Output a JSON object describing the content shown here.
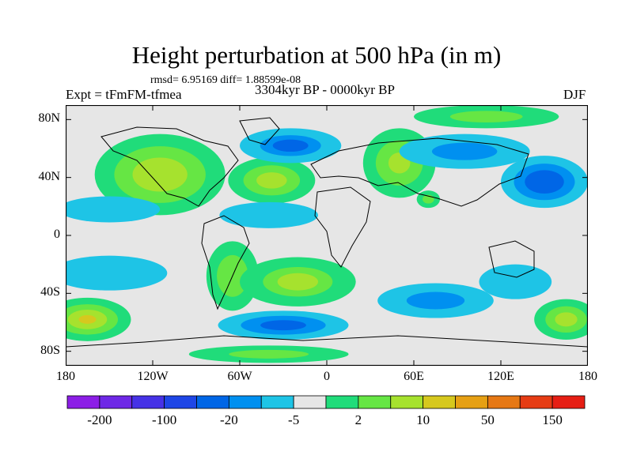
{
  "title": "Height perturbation at 500 hPa (in m)",
  "stats": "rmsd= 6.95169 diff= 1.88599e-08",
  "experiment": "Expt = tFmFM-tfmea",
  "period": "3304kyr BP - 0000kyr BP",
  "season": "DJF",
  "map": {
    "projection": "cylindrical-equidistant",
    "lon_range": [
      -180,
      180
    ],
    "lat_range": [
      -90,
      90
    ],
    "lat_ticks": [
      {
        "value": 80,
        "label": "80N"
      },
      {
        "value": 40,
        "label": "40N"
      },
      {
        "value": 0,
        "label": "0"
      },
      {
        "value": -40,
        "label": "40S"
      },
      {
        "value": -80,
        "label": "80S"
      }
    ],
    "lon_ticks": [
      {
        "value": -180,
        "label": "180"
      },
      {
        "value": -120,
        "label": "120W"
      },
      {
        "value": -60,
        "label": "60W"
      },
      {
        "value": 0,
        "label": "0"
      },
      {
        "value": 60,
        "label": "60E"
      },
      {
        "value": 120,
        "label": "120E"
      },
      {
        "value": 180,
        "label": "180"
      }
    ],
    "background_color": "#e6e6e6",
    "contour_regions": [
      {
        "name": "north-america-positive",
        "lon": -115,
        "lat": 42,
        "rlon": 45,
        "rlat": 28,
        "color": "#20dc7a",
        "levels": [
          {
            "k": 0.7,
            "color": "#66e644"
          },
          {
            "k": 0.42,
            "color": "#a6e22e"
          }
        ]
      },
      {
        "name": "north-atlantic-positive",
        "lon": -38,
        "lat": 38,
        "rlon": 30,
        "rlat": 16,
        "color": "#20dc7a",
        "levels": [
          {
            "k": 0.65,
            "color": "#66e644"
          },
          {
            "k": 0.35,
            "color": "#a6e22e"
          }
        ]
      },
      {
        "name": "europe-positive",
        "lon": 50,
        "lat": 50,
        "rlon": 25,
        "rlat": 24,
        "color": "#20dc7a",
        "levels": [
          {
            "k": 0.65,
            "color": "#66e644"
          },
          {
            "k": 0.3,
            "color": "#a6e22e"
          }
        ]
      },
      {
        "name": "arctic-positive",
        "lon": 110,
        "lat": 82,
        "rlon": 50,
        "rlat": 8,
        "color": "#20dc7a",
        "levels": [
          {
            "k": 0.5,
            "color": "#66e644"
          }
        ]
      },
      {
        "name": "siberia-negative",
        "lon": 95,
        "lat": 58,
        "rlon": 45,
        "rlat": 12,
        "color": "#1ec4e6",
        "levels": [
          {
            "k": 0.5,
            "color": "#0090f0"
          }
        ]
      },
      {
        "name": "north-pacific-negative",
        "lon": 150,
        "lat": 37,
        "rlon": 30,
        "rlat": 18,
        "color": "#1ec4e6",
        "levels": [
          {
            "k": 0.7,
            "color": "#0090f0"
          },
          {
            "k": 0.45,
            "color": "#0066e6"
          }
        ]
      },
      {
        "name": "greenland-negative",
        "lon": -25,
        "lat": 62,
        "rlon": 35,
        "rlat": 12,
        "color": "#1ec4e6",
        "levels": [
          {
            "k": 0.6,
            "color": "#0090f0"
          },
          {
            "k": 0.35,
            "color": "#0066e6"
          }
        ]
      },
      {
        "name": "atlantic-band-negative",
        "lon": -40,
        "lat": 14,
        "rlon": 34,
        "rlat": 9,
        "color": "#1ec4e6",
        "levels": []
      },
      {
        "name": "pacific-band-negative",
        "lon": -150,
        "lat": 18,
        "rlon": 35,
        "rlat": 9,
        "color": "#1ec4e6",
        "levels": []
      },
      {
        "name": "indian-ocean-positive",
        "lon": 70,
        "lat": 25,
        "rlon": 8,
        "rlat": 6,
        "color": "#20dc7a",
        "levels": [
          {
            "k": 0.5,
            "color": "#66e644"
          }
        ]
      },
      {
        "name": "south-pacific-band-negative",
        "lon": -150,
        "lat": -26,
        "rlon": 40,
        "rlat": 12,
        "color": "#1ec4e6",
        "levels": []
      },
      {
        "name": "south-america-positive",
        "lon": -65,
        "lat": -28,
        "rlon": 18,
        "rlat": 24,
        "color": "#20dc7a",
        "levels": [
          {
            "k": 0.6,
            "color": "#66e644"
          }
        ]
      },
      {
        "name": "south-atlantic-positive",
        "lon": -20,
        "lat": -32,
        "rlon": 40,
        "rlat": 17,
        "color": "#20dc7a",
        "levels": [
          {
            "k": 0.6,
            "color": "#66e644"
          },
          {
            "k": 0.35,
            "color": "#a6e22e"
          }
        ]
      },
      {
        "name": "indian-ocean-south-negative",
        "lon": 75,
        "lat": -45,
        "rlon": 40,
        "rlat": 12,
        "color": "#1ec4e6",
        "levels": [
          {
            "k": 0.5,
            "color": "#0090f0"
          }
        ]
      },
      {
        "name": "south-pacific-positive",
        "lon": -165,
        "lat": -58,
        "rlon": 30,
        "rlat": 15,
        "color": "#20dc7a",
        "levels": [
          {
            "k": 0.7,
            "color": "#66e644"
          },
          {
            "k": 0.45,
            "color": "#a6e22e"
          },
          {
            "k": 0.2,
            "color": "#d6c81e"
          }
        ]
      },
      {
        "name": "southern-ocean-negative",
        "lon": -30,
        "lat": -62,
        "rlon": 45,
        "rlat": 10,
        "color": "#1ec4e6",
        "levels": [
          {
            "k": 0.65,
            "color": "#0090f0"
          },
          {
            "k": 0.35,
            "color": "#0066e6"
          }
        ]
      },
      {
        "name": "antarctic-positive",
        "lon": -40,
        "lat": -82,
        "rlon": 55,
        "rlat": 6,
        "color": "#20dc7a",
        "levels": [
          {
            "k": 0.5,
            "color": "#66e644"
          }
        ]
      },
      {
        "name": "australia-positive",
        "lon": 130,
        "lat": -32,
        "rlon": 25,
        "rlat": 12,
        "color": "#1ec4e6",
        "levels": []
      },
      {
        "name": "tasman-positive",
        "lon": 165,
        "lat": -58,
        "rlon": 22,
        "rlat": 14,
        "color": "#20dc7a",
        "levels": [
          {
            "k": 0.65,
            "color": "#66e644"
          },
          {
            "k": 0.35,
            "color": "#a6e22e"
          }
        ]
      }
    ]
  },
  "colorbar": {
    "colors": [
      "#8c1ee6",
      "#6e28e6",
      "#4632e6",
      "#1e46e6",
      "#0066e6",
      "#0090f0",
      "#1ec4e6",
      "#e6e6e6",
      "#20dc7a",
      "#66e644",
      "#a6e22e",
      "#d6c81e",
      "#e6a014",
      "#e67814",
      "#e63c14",
      "#e61e14"
    ],
    "labels": [
      {
        "boundary": 1,
        "text": "-200"
      },
      {
        "boundary": 3,
        "text": "-100"
      },
      {
        "boundary": 5,
        "text": "-20"
      },
      {
        "boundary": 7,
        "text": "-5"
      },
      {
        "boundary": 9,
        "text": "2"
      },
      {
        "boundary": 11,
        "text": "10"
      },
      {
        "boundary": 13,
        "text": "50"
      },
      {
        "boundary": 15,
        "text": "150"
      }
    ]
  }
}
